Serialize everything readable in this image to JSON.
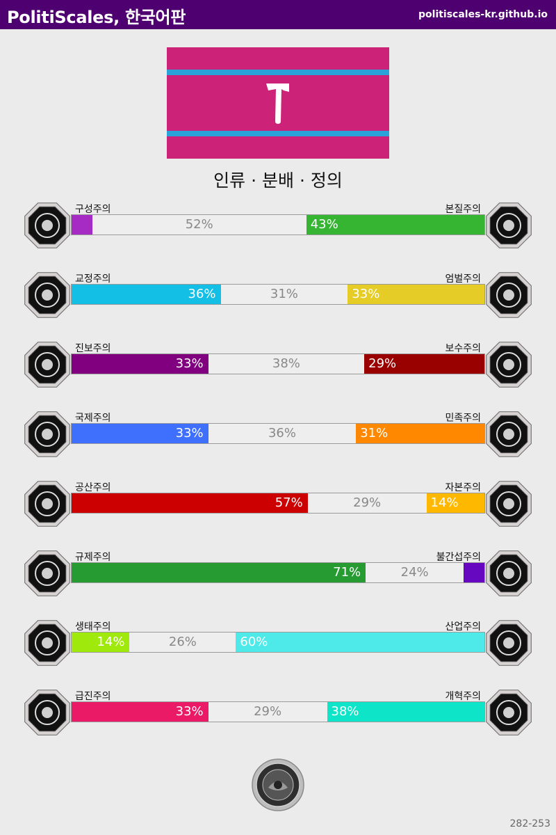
{
  "header": {
    "title": "PolitiScales, 한국어판",
    "url": "politiscales-kr.github.io",
    "background": "#4f0070"
  },
  "flag": {
    "background": "#cc2277",
    "stripe_color": "#2aa4d8",
    "symbol_color": "#ffffff",
    "symbol": "hammer-icon"
  },
  "ideology": "인류 · 분배 · 정의",
  "axes": [
    {
      "id": "constructivism-essentialism",
      "left_label": "구성주의",
      "right_label": "본질주의",
      "left_value": 5,
      "left_text": "",
      "neutral_value": 52,
      "neutral_text": "52%",
      "right_value": 43,
      "right_text": "43%",
      "left_color": "#a62ac4",
      "right_color": "#35b531",
      "right_text_color": "#ffffff",
      "left_icon": "eye-icon",
      "right_icon": "flower-icon"
    },
    {
      "id": "rehabilitative-punitive",
      "left_label": "교정주의",
      "right_label": "엄벌주의",
      "left_value": 36,
      "left_text": "36%",
      "neutral_value": 31,
      "neutral_text": "31%",
      "right_value": 33,
      "right_text": "33%",
      "left_color": "#14bfe6",
      "right_color": "#e6cc27",
      "right_text_color": "#ffffff",
      "left_icon": "handshake-icon",
      "right_icon": "prison-bars-icon"
    },
    {
      "id": "progressive-conservative",
      "left_label": "진보주의",
      "right_label": "보수주의",
      "left_value": 33,
      "left_text": "33%",
      "neutral_value": 38,
      "neutral_text": "38%",
      "right_value": 29,
      "right_text": "29%",
      "left_color": "#81007f",
      "right_color": "#990000",
      "right_text_color": "#ffffff",
      "left_icon": "rocket-icon",
      "right_icon": "quill-icon"
    },
    {
      "id": "internationalism-nationalism",
      "left_label": "국제주의",
      "right_label": "민족주의",
      "left_value": 33,
      "left_text": "33%",
      "neutral_value": 36,
      "neutral_text": "36%",
      "right_value": 31,
      "right_text": "31%",
      "left_color": "#3e6ffd",
      "right_color": "#ff8800",
      "right_text_color": "#ffffff",
      "left_icon": "globe-icon",
      "right_icon": "flag-icon"
    },
    {
      "id": "communism-capitalism",
      "left_label": "공산주의",
      "right_label": "자본주의",
      "left_value": 57,
      "left_text": "57%",
      "neutral_value": 29,
      "neutral_text": "29%",
      "right_value": 14,
      "right_text": "14%",
      "left_color": "#cc0000",
      "right_color": "#ffb800",
      "right_text_color": "#ffffff",
      "left_icon": "hammer-sickle-icon",
      "right_icon": "money-bag-icon"
    },
    {
      "id": "regulation-laissez-faire",
      "left_label": "규제주의",
      "right_label": "불간섭주의",
      "left_value": 71,
      "left_text": "71%",
      "neutral_value": 24,
      "neutral_text": "24%",
      "right_value": 5,
      "right_text": "",
      "left_color": "#269b32",
      "right_color": "#6608c0",
      "right_text_color": "#ffffff",
      "left_icon": "ruler-icon",
      "right_icon": "butterfly-icon"
    },
    {
      "id": "ecology-productivism",
      "left_label": "생태주의",
      "right_label": "산업주의",
      "left_value": 14,
      "left_text": "14%",
      "neutral_value": 26,
      "neutral_text": "26%",
      "right_value": 60,
      "right_text": "60%",
      "left_color": "#a0e90d",
      "right_color": "#4deae9",
      "right_text_color": "#ffffff",
      "left_icon": "sprout-icon",
      "right_icon": "gear-icon"
    },
    {
      "id": "revolution-reform",
      "left_label": "급진주의",
      "right_label": "개혁주의",
      "left_value": 33,
      "left_text": "33%",
      "neutral_value": 29,
      "neutral_text": "29%",
      "right_value": 38,
      "right_text": "38%",
      "left_color": "#eb1a66",
      "right_color": "#0ee4c8",
      "right_text_color": "#ffffff",
      "left_icon": "fist-icon",
      "right_icon": "parliament-icon"
    }
  ],
  "seal": "seal-icon",
  "code": "282-253"
}
